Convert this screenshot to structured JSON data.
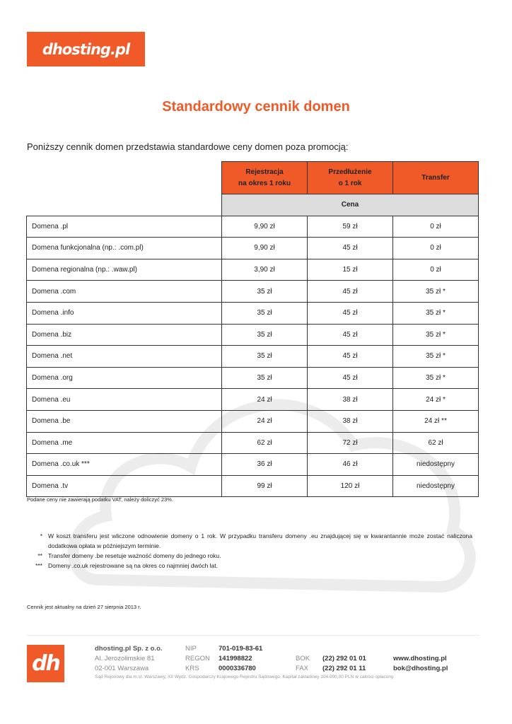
{
  "logo": {
    "text": "dhosting.pl"
  },
  "title": "Standardowy cennik domen",
  "intro": "Poniższy cennik domen przedstawia standardowe ceny domen poza promocją:",
  "table": {
    "col_registration_line1": "Rejestracja",
    "col_registration_line2": "na okres 1 roku",
    "col_renewal_line1": "Przedłużenie",
    "col_renewal_line2": "o 1 rok",
    "col_transfer": "Transfer",
    "subheader": "Cena",
    "rows": [
      {
        "name": "Domena .pl",
        "reg": "9,90 zł",
        "renew": "59 zł",
        "transfer": "0 zł"
      },
      {
        "name": "Domena funkcjonalna (np.: .com.pl)",
        "reg": "9,90 zł",
        "renew": "45 zł",
        "transfer": "0 zł"
      },
      {
        "name": "Domena regionalna (np.: .waw.pl)",
        "reg": "3,90 zł",
        "renew": "15 zł",
        "transfer": "0 zł"
      },
      {
        "name": "Domena .com",
        "reg": "35 zł",
        "renew": "45 zł",
        "transfer": "35 zł *"
      },
      {
        "name": "Domena .info",
        "reg": "35 zł",
        "renew": "45 zł",
        "transfer": "35 zł *"
      },
      {
        "name": "Domena .biz",
        "reg": "35 zł",
        "renew": "45 zł",
        "transfer": "35 zł *"
      },
      {
        "name": "Domena .net",
        "reg": "35 zł",
        "renew": "45 zł",
        "transfer": "35 zł *"
      },
      {
        "name": "Domena .org",
        "reg": "35 zł",
        "renew": "45 zł",
        "transfer": "35 zł *"
      },
      {
        "name": "Domena .eu",
        "reg": "24 zł",
        "renew": "38 zł",
        "transfer": "24 zł *"
      },
      {
        "name": "Domena .be",
        "reg": "24 zł",
        "renew": "38 zł",
        "transfer": "24 zł **"
      },
      {
        "name": "Domena .me",
        "reg": "62 zł",
        "renew": "72 zł",
        "transfer": "62 zł"
      },
      {
        "name": "Domena .co.uk ***",
        "reg": "36 zł",
        "renew": "46 zł",
        "transfer": "niedostępny"
      },
      {
        "name": "Domena .tv",
        "reg": "99 zł",
        "renew": "120 zł",
        "transfer": "niedostępny"
      }
    ]
  },
  "vat_note": "Podane ceny nie zawierają podatku VAT, należy doliczyć 23%.",
  "notes": [
    {
      "mark": "*",
      "text": "W koszt transferu jest wliczone odnowienie domeny o 1 rok. W przypadku transferu domeny .eu znajdującej się w kwarantannie może zostać naliczona dodatkowa opłata w późniejszym terminie."
    },
    {
      "mark": "**",
      "text": "Transfer domeny .be resetuje ważność domeny do jednego roku."
    },
    {
      "mark": "***",
      "text": "Domeny .co.uk rejestrowane są na okres co najmniej dwóch lat."
    }
  ],
  "validity": "Cennik jest aktualny na dzień 27 sierpnia 2013 r.",
  "footer": {
    "logo_text": "dh",
    "company": "dhosting.pl Sp. z o.o.",
    "street": "Al. Jerozolimskie 81",
    "city": "02-001 Warszawa",
    "nip_label": "NIP",
    "nip": "701-019-83-61",
    "regon_label": "REGON",
    "regon": "141998822",
    "krs_label": "KRS",
    "krs": "0000336780",
    "bok_label": "BOK",
    "bok": "(22) 292 01 01",
    "fax_label": "FAX",
    "fax": "(22) 292 01 11",
    "www": "www.dhosting.pl",
    "email": "bok@dhosting.pl",
    "legal": "Sąd Rejonowy dla m.st. Warszawy, XII Wydz. Gospodarczy Krajowego Rejestru Sądowego. Kapitał zakładowy 104.000,00 PLN w całości opłacony."
  },
  "colors": {
    "accent": "#f05a28",
    "subheader_bg": "#dcdcdc"
  }
}
